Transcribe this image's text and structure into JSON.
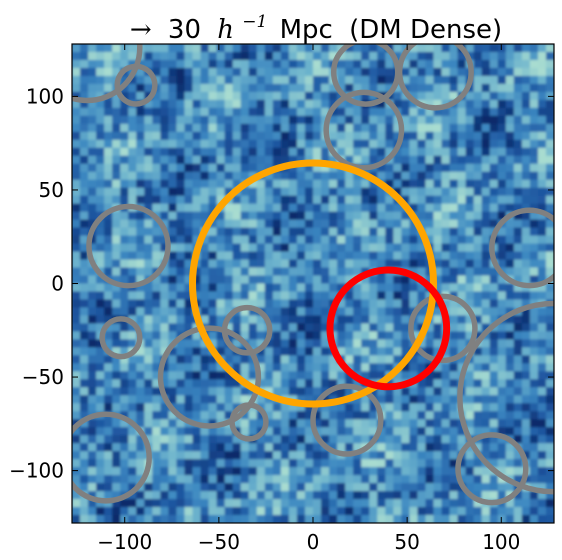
{
  "chart_data": {
    "type": "scatter",
    "title": {
      "arrow": "→",
      "value": "30",
      "unit_symbol": "h",
      "unit_exponent": "−1",
      "unit_label": "Mpc",
      "qualifier": "(DM Dense)"
    },
    "xlabel": "",
    "ylabel": "",
    "xlim": [
      -128,
      128
    ],
    "ylim": [
      -128,
      128
    ],
    "x_ticks": [
      -100,
      -50,
      0,
      50,
      100
    ],
    "y_ticks": [
      100,
      50,
      0,
      -50,
      -100
    ],
    "tick_labels": {
      "x": [
        "−100",
        "−50",
        "0",
        "50",
        "100"
      ],
      "y": [
        "100",
        "50",
        "0",
        "−50",
        "−100"
      ]
    },
    "grid": false,
    "legend": "none",
    "background": "blue density field (colormap dark navy to light cyan)",
    "colors": {
      "orange_circle": "#ffa500",
      "red_circle": "#ff0000",
      "gray_circles": "#808080",
      "field_dark": "#0a2a6a",
      "field_mid": "#3b86c0",
      "field_light": "#a8dcd0"
    },
    "circles": [
      {
        "role": "query",
        "color": "orange",
        "cx": 0,
        "cy": 0,
        "r": 64
      },
      {
        "role": "match",
        "color": "red",
        "cx": 40,
        "cy": -24,
        "r": 31
      },
      {
        "role": "void",
        "color": "gray",
        "cx": -120,
        "cy": 126,
        "r": 28
      },
      {
        "role": "void",
        "color": "gray",
        "cx": -94,
        "cy": 106,
        "r": 10
      },
      {
        "role": "void",
        "color": "gray",
        "cx": 28,
        "cy": 113,
        "r": 17
      },
      {
        "role": "void",
        "color": "gray",
        "cx": 65,
        "cy": 113,
        "r": 19
      },
      {
        "role": "void",
        "color": "gray",
        "cx": 27,
        "cy": 82,
        "r": 20
      },
      {
        "role": "void",
        "color": "gray",
        "cx": -98,
        "cy": 20,
        "r": 21
      },
      {
        "role": "void",
        "color": "gray",
        "cx": 115,
        "cy": 19,
        "r": 20
      },
      {
        "role": "void",
        "color": "gray",
        "cx": -102,
        "cy": -29,
        "r": 10
      },
      {
        "role": "void",
        "color": "gray",
        "cx": -35,
        "cy": -25,
        "r": 12
      },
      {
        "role": "void",
        "color": "gray",
        "cx": 69,
        "cy": -24,
        "r": 17
      },
      {
        "role": "void",
        "color": "gray",
        "cx": -55,
        "cy": -50,
        "r": 26
      },
      {
        "role": "void",
        "color": "gray",
        "cx": -34,
        "cy": -74,
        "r": 9
      },
      {
        "role": "void",
        "color": "gray",
        "cx": 18,
        "cy": -73,
        "r": 18
      },
      {
        "role": "void",
        "color": "gray",
        "cx": 128,
        "cy": -61,
        "r": 50
      },
      {
        "role": "void",
        "color": "gray",
        "cx": -110,
        "cy": -93,
        "r": 23
      },
      {
        "role": "void",
        "color": "gray",
        "cx": 95,
        "cy": -99,
        "r": 18
      }
    ]
  }
}
